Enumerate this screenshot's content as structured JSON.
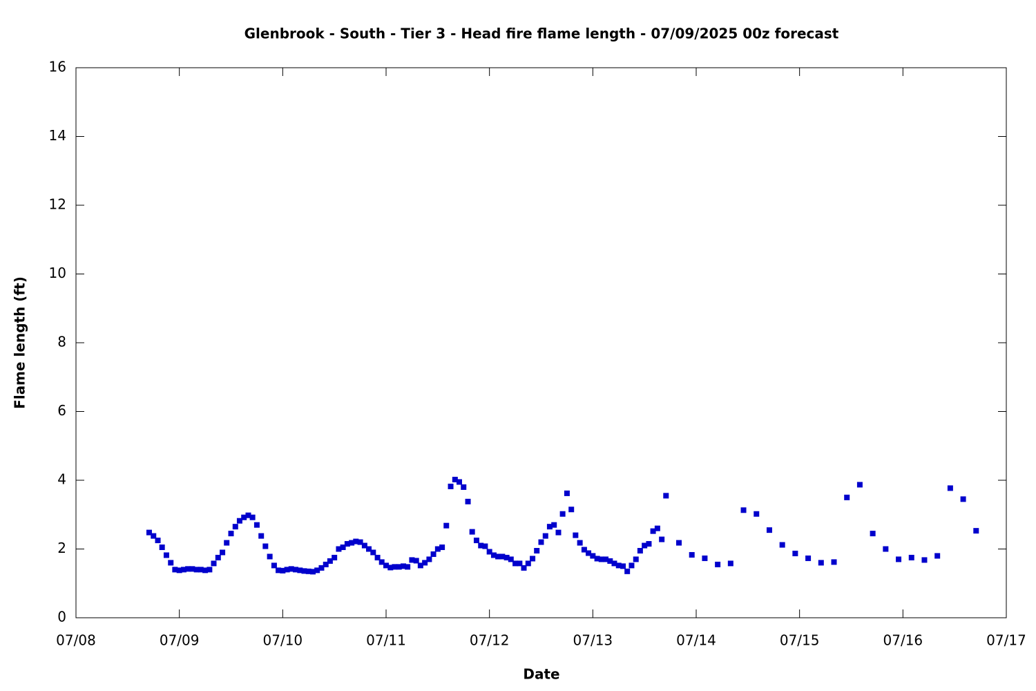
{
  "chart_data": {
    "type": "scatter",
    "title": "Glenbrook - South - Tier 3 - Head fire flame length - 07/09/2025 00z forecast",
    "xlabel": "Date",
    "ylabel": "Flame length (ft)",
    "color": "#0000cc",
    "x": [
      8.708,
      8.75,
      8.792,
      8.833,
      8.875,
      8.917,
      8.958,
      9,
      9.042,
      9.083,
      9.125,
      9.167,
      9.208,
      9.25,
      9.292,
      9.333,
      9.375,
      9.417,
      9.458,
      9.5,
      9.542,
      9.583,
      9.625,
      9.667,
      9.708,
      9.75,
      9.792,
      9.833,
      9.875,
      9.917,
      9.958,
      10,
      10.042,
      10.083,
      10.125,
      10.167,
      10.208,
      10.25,
      10.292,
      10.333,
      10.375,
      10.417,
      10.458,
      10.5,
      10.542,
      10.583,
      10.625,
      10.667,
      10.708,
      10.75,
      10.792,
      10.833,
      10.875,
      10.917,
      10.958,
      11,
      11.042,
      11.083,
      11.125,
      11.167,
      11.208,
      11.25,
      11.292,
      11.333,
      11.375,
      11.417,
      11.458,
      11.5,
      11.542,
      11.583,
      11.625,
      11.667,
      11.708,
      11.75,
      11.792,
      11.833,
      11.875,
      11.917,
      11.958,
      12,
      12.042,
      12.083,
      12.125,
      12.167,
      12.208,
      12.25,
      12.292,
      12.333,
      12.375,
      12.417,
      12.458,
      12.5,
      12.542,
      12.583,
      12.625,
      12.667,
      12.708,
      12.75,
      12.792,
      12.833,
      12.875,
      12.917,
      12.958,
      13,
      13.042,
      13.083,
      13.125,
      13.167,
      13.208,
      13.25,
      13.292,
      13.333,
      13.375,
      13.417,
      13.458,
      13.5,
      13.542,
      13.583,
      13.625,
      13.667,
      13.708,
      13.833,
      13.958,
      14.083,
      14.208,
      14.333,
      14.458,
      14.583,
      14.708,
      14.833,
      14.958,
      15.083,
      15.208,
      15.333,
      15.458,
      15.583,
      15.708,
      15.833,
      15.958,
      16.083,
      16.208,
      16.333,
      16.458,
      16.583,
      16.708
    ],
    "values": [
      2.48,
      2.38,
      2.25,
      2.05,
      1.82,
      1.6,
      1.4,
      1.38,
      1.4,
      1.42,
      1.42,
      1.4,
      1.4,
      1.38,
      1.4,
      1.58,
      1.75,
      1.9,
      2.18,
      2.45,
      2.65,
      2.82,
      2.92,
      2.98,
      2.92,
      2.7,
      2.38,
      2.08,
      1.78,
      1.52,
      1.38,
      1.37,
      1.4,
      1.42,
      1.4,
      1.38,
      1.36,
      1.35,
      1.34,
      1.38,
      1.45,
      1.55,
      1.65,
      1.75,
      2.0,
      2.05,
      2.15,
      2.18,
      2.22,
      2.2,
      2.1,
      2.0,
      1.9,
      1.75,
      1.62,
      1.52,
      1.46,
      1.48,
      1.48,
      1.5,
      1.48,
      1.68,
      1.66,
      1.52,
      1.6,
      1.7,
      1.85,
      2.0,
      2.05,
      2.68,
      3.82,
      4.02,
      3.95,
      3.8,
      3.38,
      2.5,
      2.25,
      2.1,
      2.08,
      1.92,
      1.82,
      1.78,
      1.78,
      1.75,
      1.7,
      1.58,
      1.58,
      1.45,
      1.58,
      1.72,
      1.95,
      2.2,
      2.38,
      2.65,
      2.7,
      2.48,
      3.02,
      3.62,
      3.15,
      2.4,
      2.18,
      1.98,
      1.88,
      1.8,
      1.72,
      1.7,
      1.7,
      1.65,
      1.58,
      1.52,
      1.5,
      1.35,
      1.52,
      1.7,
      1.95,
      2.1,
      2.15,
      2.52,
      2.6,
      2.28,
      3.55,
      2.18,
      1.83,
      1.73,
      1.55,
      1.58,
      3.13,
      3.02,
      2.55,
      2.12,
      1.87,
      1.73,
      1.6,
      1.62,
      3.5,
      3.87,
      2.45,
      2.0,
      1.7,
      1.75,
      1.68,
      1.8,
      3.77,
      3.45,
      2.53
    ],
    "xlim": [
      8,
      17
    ],
    "xticks": [
      {
        "value": 8,
        "label": "07/08"
      },
      {
        "value": 9,
        "label": "07/09"
      },
      {
        "value": 10,
        "label": "07/10"
      },
      {
        "value": 11,
        "label": "07/11"
      },
      {
        "value": 12,
        "label": "07/12"
      },
      {
        "value": 13,
        "label": "07/13"
      },
      {
        "value": 14,
        "label": "07/14"
      },
      {
        "value": 15,
        "label": "07/15"
      },
      {
        "value": 16,
        "label": "07/16"
      },
      {
        "value": 17,
        "label": "07/17"
      }
    ],
    "ylim": [
      0,
      16
    ],
    "yticks": [
      0,
      2,
      4,
      6,
      8,
      10,
      12,
      14,
      16
    ]
  }
}
